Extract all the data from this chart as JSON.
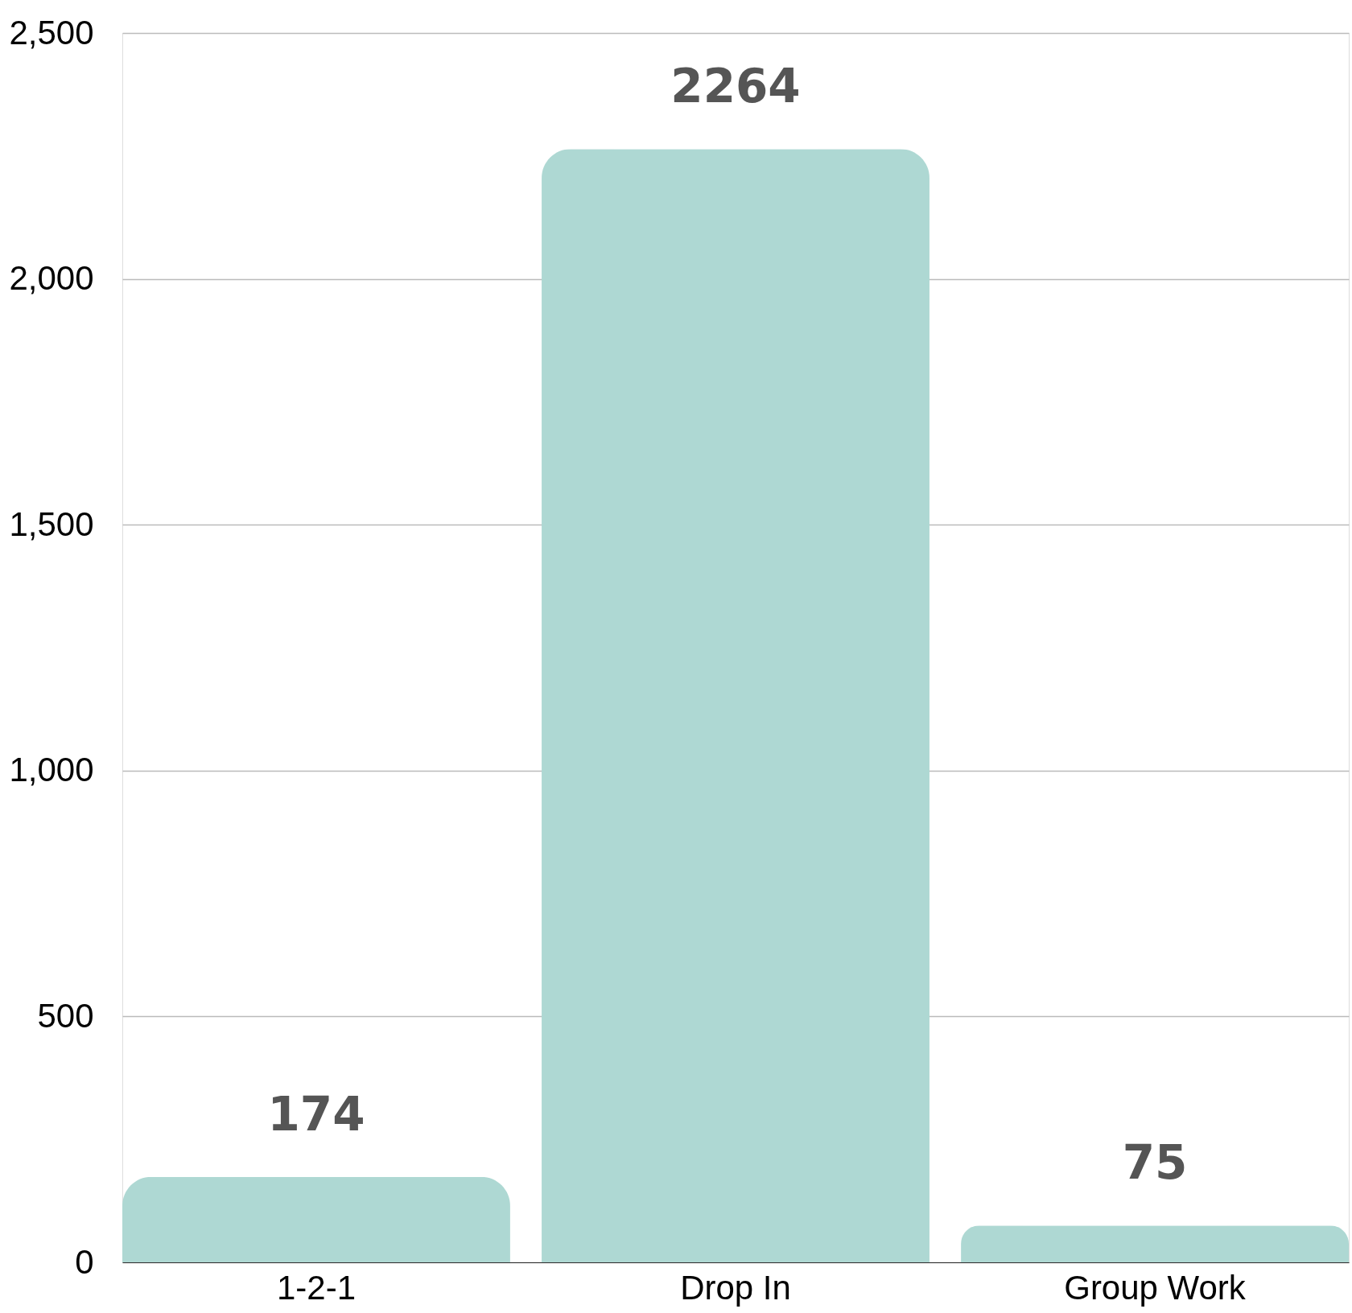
{
  "chart_data": {
    "type": "bar",
    "categories": [
      "1-2-1",
      "Drop In",
      "Group Work"
    ],
    "values": [
      174,
      2264,
      75
    ],
    "color": "#aed8d3",
    "ylim": [
      0,
      2500
    ],
    "yticks": [
      0,
      500,
      {
        "value": 1000,
        "label": "1,000"
      },
      {
        "value": 1500,
        "label": "1,500"
      },
      {
        "value": 2000,
        "label": "2,000"
      },
      {
        "value": 2500,
        "label": "2,500"
      }
    ],
    "grid": "y",
    "data_labels": true
  }
}
